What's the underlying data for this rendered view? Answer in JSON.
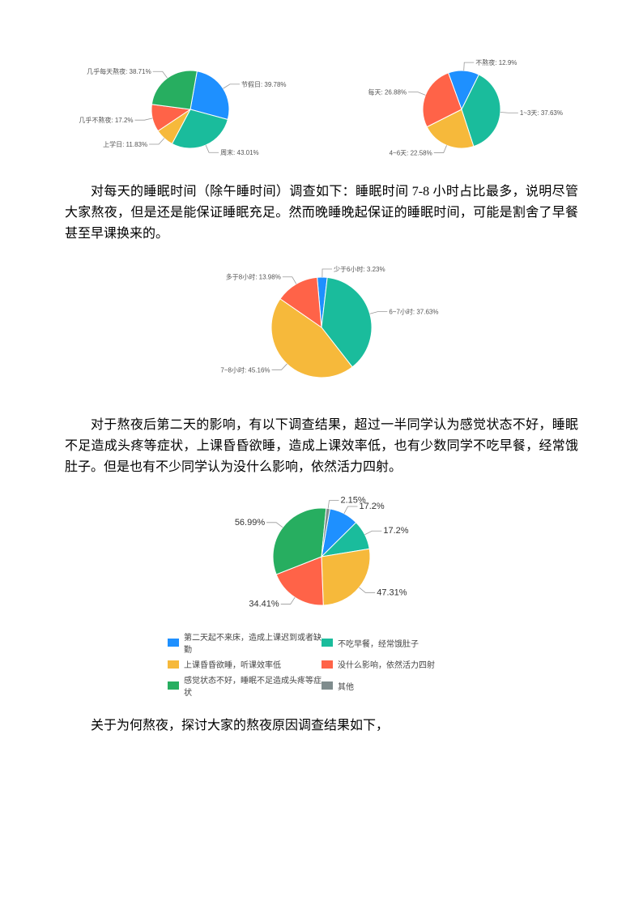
{
  "chart1": {
    "type": "pie",
    "radius": 48,
    "slices": [
      {
        "label": "节假日: 39.78%",
        "value": 39.78,
        "color": "#1e90ff"
      },
      {
        "label": "周末: 43.01%",
        "value": 43.01,
        "color": "#1abc9c"
      },
      {
        "label": "上学日: 11.83%",
        "value": 11.83,
        "color": "#f6b93b"
      },
      {
        "label": "几乎不熬夜: 17.2%",
        "value": 17.2,
        "color": "#ff6348"
      },
      {
        "label": "几乎每天熬夜: 38.71%",
        "value": 38.71,
        "color": "#27ae60"
      }
    ]
  },
  "chart2": {
    "type": "pie",
    "radius": 48,
    "slices": [
      {
        "label": "不熬夜: 12.9%",
        "value": 12.9,
        "color": "#1e90ff"
      },
      {
        "label": "1~3天: 37.63%",
        "value": 37.63,
        "color": "#1abc9c"
      },
      {
        "label": "4~6天: 22.58%",
        "value": 22.58,
        "color": "#f6b93b"
      },
      {
        "label": "每天: 26.88%",
        "value": 26.88,
        "color": "#ff6348"
      }
    ]
  },
  "para1": "对每天的睡眠时间（除午睡时间）调查如下：睡眠时间 7-8 小时占比最多，说明尽管大家熬夜，但是还是能保证睡眠充足。然而晚睡晚起保证的睡眠时间，可能是割舍了早餐甚至早课换来的。",
  "chart3": {
    "type": "pie",
    "radius": 62,
    "slices": [
      {
        "label": "少于6小时: 3.23%",
        "value": 3.23,
        "color": "#1e90ff"
      },
      {
        "label": "6~7小时: 37.63%",
        "value": 37.63,
        "color": "#1abc9c"
      },
      {
        "label": "7~8小时: 45.16%",
        "value": 45.16,
        "color": "#f6b93b"
      },
      {
        "label": "多于8小时: 13.98%",
        "value": 13.98,
        "color": "#ff6348"
      }
    ]
  },
  "para2": "对于熬夜后第二天的影响，有以下调查结果，超过一半同学认为感觉状态不好，睡眠不足造成头疼等症状，上课昏昏欲睡，造成上课效率低，也有少数同学不吃早餐，经常饿肚子。但是也有不少同学认为没什么影响，依然活力四射。",
  "chart4": {
    "type": "pie",
    "radius": 60,
    "slices": [
      {
        "label": "17.2%",
        "value": 17.2,
        "color": "#1e90ff"
      },
      {
        "label": "17.2%",
        "value": 17.2,
        "color": "#1abc9c"
      },
      {
        "label": "47.31%",
        "value": 47.31,
        "color": "#f6b93b"
      },
      {
        "label": "34.41%",
        "value": 34.41,
        "color": "#ff6348"
      },
      {
        "label": "56.99%",
        "value": 56.99,
        "color": "#27ae60"
      },
      {
        "label": "2.15%",
        "value": 2.15,
        "color": "#7f8c8d"
      }
    ],
    "legend": [
      {
        "text": "第二天起不来床，造成上课迟到或者缺勤",
        "color": "#1e90ff"
      },
      {
        "text": "不吃早餐，经常饿肚子",
        "color": "#1abc9c"
      },
      {
        "text": "上课昏昏欲睡，听课效率低",
        "color": "#f6b93b"
      },
      {
        "text": "没什么影响，依然活力四射",
        "color": "#ff6348"
      },
      {
        "text": "感觉状态不好，睡眠不足造成头疼等症状",
        "color": "#27ae60"
      },
      {
        "text": "其他",
        "color": "#7f8c8d"
      }
    ]
  },
  "para3": "关于为何熬夜，探讨大家的熬夜原因调查结果如下，"
}
